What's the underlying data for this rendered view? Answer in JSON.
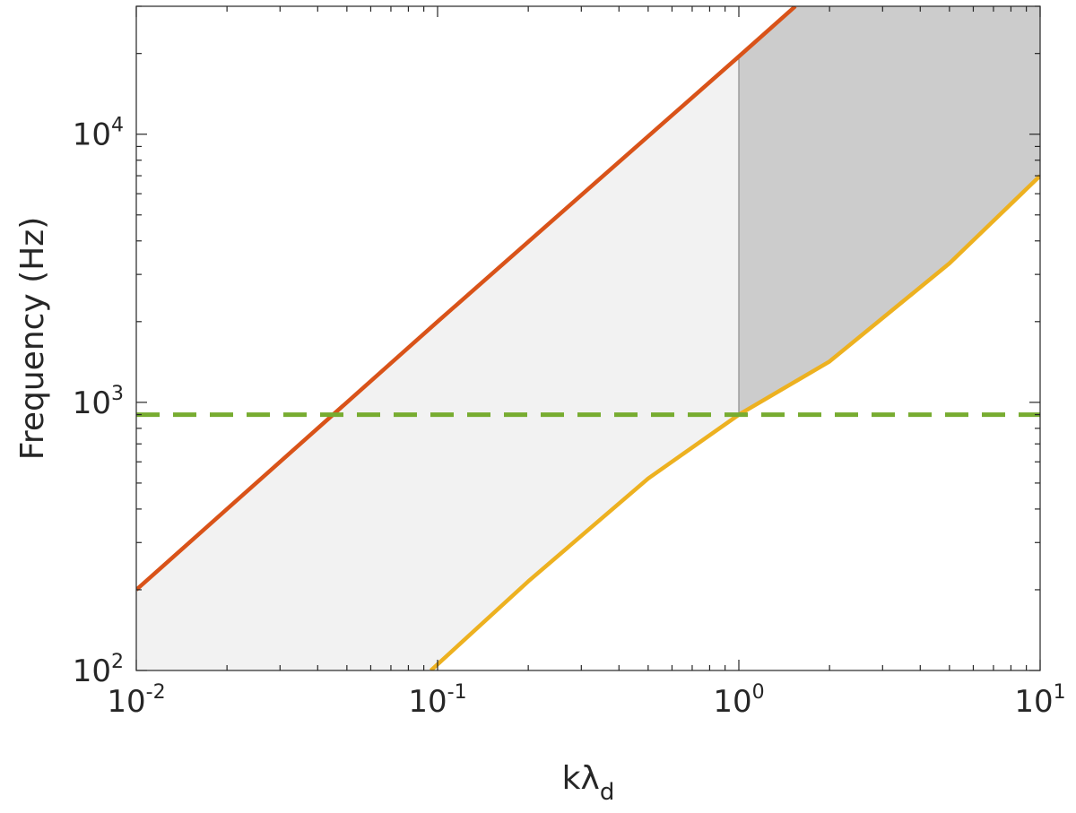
{
  "chart_data": {
    "type": "line",
    "title": "",
    "xlabel": {
      "base": "kλ",
      "sub": "d"
    },
    "ylabel": "Frequency (Hz)",
    "xscale": "log",
    "yscale": "log",
    "xlim": [
      0.01,
      10
    ],
    "ylim": [
      100,
      30000
    ],
    "grid": false,
    "xticks": [
      {
        "value": 0.01,
        "base": "10",
        "exp": "-2"
      },
      {
        "value": 0.1,
        "base": "10",
        "exp": "-1"
      },
      {
        "value": 1,
        "base": "10",
        "exp": "0"
      },
      {
        "value": 10,
        "base": "10",
        "exp": "1"
      }
    ],
    "yticks": [
      {
        "value": 100,
        "base": "10",
        "exp": "2"
      },
      {
        "value": 1000,
        "base": "10",
        "exp": "3"
      },
      {
        "value": 10000,
        "base": "10",
        "exp": "4"
      }
    ],
    "series": [
      {
        "key": "upper-line",
        "color": "#d95319",
        "style": "solid",
        "x": [
          0.01,
          0.1,
          1,
          1.54
        ],
        "y": [
          200,
          2000,
          19500,
          30000
        ]
      },
      {
        "key": "lower-curve",
        "color": "#edb120",
        "style": "solid",
        "x": [
          0.095,
          0.2,
          0.5,
          1,
          2,
          5,
          10
        ],
        "y": [
          100,
          215,
          520,
          900,
          1420,
          3300,
          7000
        ]
      },
      {
        "key": "reference-level",
        "color": "#77ac30",
        "style": "dashed",
        "x": [
          0.01,
          10
        ],
        "y": [
          900,
          900
        ]
      }
    ],
    "regions": [
      {
        "key": "light-region",
        "color": "#f2f2f2",
        "polygon": [
          [
            0.01,
            100
          ],
          [
            0.01,
            200
          ],
          [
            0.1,
            2000
          ],
          [
            1,
            19500
          ],
          [
            1,
            900
          ],
          [
            0.5,
            520
          ],
          [
            0.2,
            215
          ],
          [
            0.095,
            100
          ]
        ]
      },
      {
        "key": "dark-region",
        "color": "#cccccc",
        "polygon": [
          [
            1,
            900
          ],
          [
            1,
            19500
          ],
          [
            1.54,
            30000
          ],
          [
            10,
            30000
          ],
          [
            10,
            7000
          ],
          [
            5,
            3300
          ],
          [
            2,
            1420
          ]
        ]
      }
    ],
    "divider": {
      "x": 1,
      "y_from": 900,
      "y_to": 19500,
      "color": "#8c8c8c"
    }
  }
}
